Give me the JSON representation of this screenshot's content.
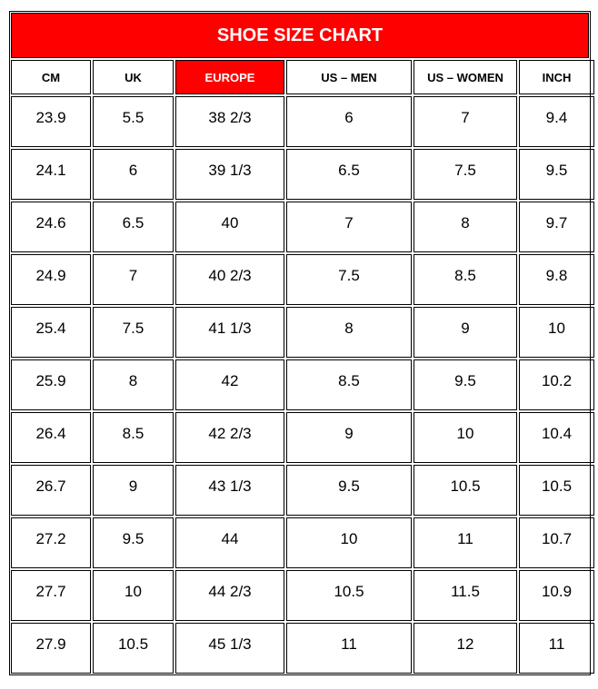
{
  "title": "SHOE SIZE CHART",
  "table": {
    "header": [
      "CM",
      "UK",
      "EUROPE",
      "US – MEN",
      "US – WOMEN",
      "INCH"
    ],
    "rows": [
      [
        "23.9",
        "5.5",
        "38 2/3",
        "6",
        "7",
        "9.4"
      ],
      [
        "24.1",
        "6",
        "39 1/3",
        "6.5",
        "7.5",
        "9.5"
      ],
      [
        "24.6",
        "6.5",
        "40",
        "7",
        "8",
        "9.7"
      ],
      [
        "24.9",
        "7",
        "40 2/3",
        "7.5",
        "8.5",
        "9.8"
      ],
      [
        "25.4",
        "7.5",
        "41 1/3",
        "8",
        "9",
        "10"
      ],
      [
        "25.9",
        "8",
        "42",
        "8.5",
        "9.5",
        "10.2"
      ],
      [
        "26.4",
        "8.5",
        "42 2/3",
        "9",
        "10",
        "10.4"
      ],
      [
        "26.7",
        "9",
        "43 1/3",
        "9.5",
        "10.5",
        "10.5"
      ],
      [
        "27.2",
        "9.5",
        "44",
        "10",
        "11",
        "10.7"
      ],
      [
        "27.7",
        "10",
        "44 2/3",
        "10.5",
        "11.5",
        "10.9"
      ],
      [
        "27.9",
        "10.5",
        "45 1/3",
        "11",
        "12",
        "11"
      ]
    ]
  }
}
